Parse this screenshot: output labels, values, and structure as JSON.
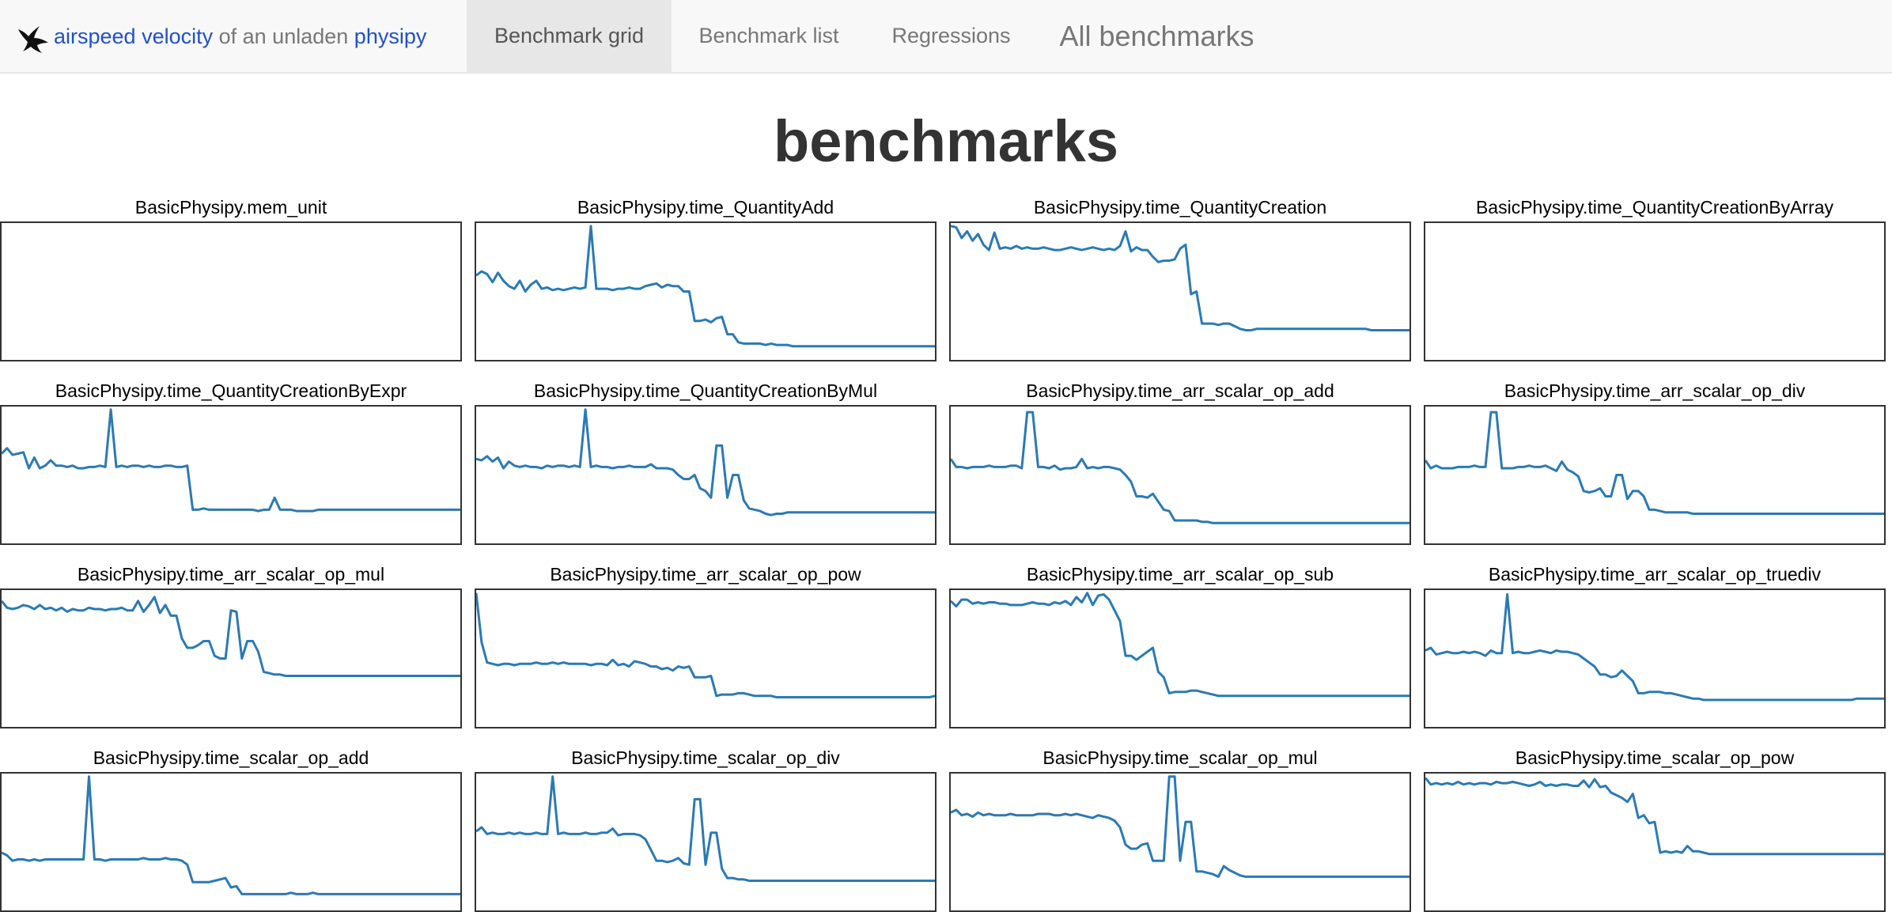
{
  "navbar": {
    "brand": {
      "link_text": "airspeed velocity",
      "middle_text": "of an unladen",
      "project_link": "physipy",
      "logo_icon": "swallow-bird-icon"
    },
    "items": [
      {
        "label": "Benchmark grid",
        "active": true
      },
      {
        "label": "Benchmark list",
        "active": false
      },
      {
        "label": "Regressions",
        "active": false
      },
      {
        "label": "All benchmarks",
        "active": false
      }
    ]
  },
  "page": {
    "title": "benchmarks"
  },
  "colors": {
    "line": "#2a7ab5",
    "link": "#1f51c7",
    "frame": "#333333"
  },
  "chart_data": [
    {
      "type": "line",
      "title": "BasicPhysipy.mem_unit",
      "y": []
    },
    {
      "type": "line",
      "title": "BasicPhysipy.time_QuantityAdd",
      "y": [
        0.62,
        0.65,
        0.63,
        0.57,
        0.64,
        0.58,
        0.54,
        0.52,
        0.58,
        0.5,
        0.55,
        0.58,
        0.52,
        0.53,
        0.51,
        0.52,
        0.51,
        0.52,
        0.53,
        0.52,
        0.53,
        0.99,
        0.52,
        0.52,
        0.52,
        0.51,
        0.52,
        0.52,
        0.53,
        0.52,
        0.52,
        0.54,
        0.55,
        0.56,
        0.53,
        0.55,
        0.54,
        0.54,
        0.5,
        0.5,
        0.28,
        0.28,
        0.29,
        0.27,
        0.3,
        0.31,
        0.18,
        0.18,
        0.12,
        0.11,
        0.11,
        0.11,
        0.11,
        0.1,
        0.11,
        0.1,
        0.1,
        0.1,
        0.09,
        0.09,
        0.09,
        0.09,
        0.09,
        0.09,
        0.09,
        0.09,
        0.09,
        0.09,
        0.09,
        0.09,
        0.09,
        0.09,
        0.09,
        0.09,
        0.09,
        0.09,
        0.09,
        0.09,
        0.09,
        0.09,
        0.09,
        0.09,
        0.09,
        0.09,
        0.09
      ]
    },
    {
      "type": "line",
      "title": "BasicPhysipy.time_QuantityCreation",
      "y": [
        0.99,
        0.98,
        0.9,
        0.95,
        0.88,
        0.93,
        0.85,
        0.81,
        0.94,
        0.82,
        0.83,
        0.82,
        0.84,
        0.82,
        0.83,
        0.82,
        0.82,
        0.83,
        0.82,
        0.81,
        0.81,
        0.82,
        0.83,
        0.82,
        0.81,
        0.82,
        0.83,
        0.82,
        0.81,
        0.82,
        0.81,
        0.84,
        0.95,
        0.8,
        0.83,
        0.81,
        0.81,
        0.76,
        0.72,
        0.73,
        0.73,
        0.74,
        0.82,
        0.85,
        0.48,
        0.5,
        0.26,
        0.26,
        0.26,
        0.25,
        0.26,
        0.26,
        0.24,
        0.22,
        0.21,
        0.21,
        0.22,
        0.22,
        0.22,
        0.22,
        0.22,
        0.22,
        0.22,
        0.22,
        0.22,
        0.22,
        0.22,
        0.22,
        0.22,
        0.22,
        0.22,
        0.22,
        0.22,
        0.22,
        0.22,
        0.22,
        0.22,
        0.21,
        0.21,
        0.21,
        0.21,
        0.21,
        0.21,
        0.21,
        0.21
      ]
    },
    {
      "type": "line",
      "title": "BasicPhysipy.time_QuantityCreationByArray",
      "y": []
    },
    {
      "type": "line",
      "title": "BasicPhysipy.time_QuantityCreationByExpr",
      "y": [
        0.66,
        0.7,
        0.65,
        0.66,
        0.67,
        0.55,
        0.63,
        0.55,
        0.57,
        0.61,
        0.57,
        0.57,
        0.56,
        0.57,
        0.55,
        0.55,
        0.56,
        0.56,
        0.57,
        0.56,
        0.99,
        0.56,
        0.57,
        0.56,
        0.57,
        0.57,
        0.56,
        0.57,
        0.56,
        0.56,
        0.57,
        0.57,
        0.56,
        0.56,
        0.57,
        0.24,
        0.24,
        0.25,
        0.24,
        0.24,
        0.24,
        0.24,
        0.24,
        0.24,
        0.24,
        0.24,
        0.24,
        0.23,
        0.24,
        0.24,
        0.33,
        0.24,
        0.24,
        0.24,
        0.23,
        0.23,
        0.23,
        0.23,
        0.24,
        0.24,
        0.24,
        0.24,
        0.24,
        0.24,
        0.24,
        0.24,
        0.24,
        0.24,
        0.24,
        0.24,
        0.24,
        0.24,
        0.24,
        0.24,
        0.24,
        0.24,
        0.24,
        0.24,
        0.24,
        0.24,
        0.24,
        0.24,
        0.24,
        0.24,
        0.24
      ]
    },
    {
      "type": "line",
      "title": "BasicPhysipy.time_QuantityCreationByMul",
      "y": [
        0.62,
        0.61,
        0.64,
        0.6,
        0.63,
        0.55,
        0.6,
        0.57,
        0.56,
        0.57,
        0.56,
        0.56,
        0.55,
        0.57,
        0.56,
        0.57,
        0.57,
        0.56,
        0.57,
        0.56,
        0.99,
        0.56,
        0.57,
        0.56,
        0.56,
        0.55,
        0.56,
        0.56,
        0.57,
        0.56,
        0.56,
        0.56,
        0.58,
        0.55,
        0.55,
        0.55,
        0.54,
        0.5,
        0.47,
        0.47,
        0.5,
        0.4,
        0.38,
        0.33,
        0.72,
        0.72,
        0.33,
        0.5,
        0.5,
        0.31,
        0.25,
        0.24,
        0.23,
        0.21,
        0.2,
        0.21,
        0.21,
        0.22,
        0.22,
        0.22,
        0.22,
        0.22,
        0.22,
        0.22,
        0.22,
        0.22,
        0.22,
        0.22,
        0.22,
        0.22,
        0.22,
        0.22,
        0.22,
        0.22,
        0.22,
        0.22,
        0.22,
        0.22,
        0.22,
        0.22,
        0.22,
        0.22,
        0.22,
        0.22,
        0.22
      ]
    },
    {
      "type": "line",
      "title": "BasicPhysipy.time_arr_scalar_op_add",
      "y": [
        0.62,
        0.56,
        0.56,
        0.55,
        0.56,
        0.56,
        0.56,
        0.57,
        0.56,
        0.56,
        0.56,
        0.57,
        0.57,
        0.55,
        0.97,
        0.97,
        0.56,
        0.56,
        0.55,
        0.57,
        0.54,
        0.55,
        0.55,
        0.56,
        0.62,
        0.55,
        0.56,
        0.55,
        0.56,
        0.56,
        0.55,
        0.54,
        0.5,
        0.45,
        0.34,
        0.34,
        0.33,
        0.36,
        0.3,
        0.24,
        0.23,
        0.16,
        0.16,
        0.16,
        0.16,
        0.16,
        0.15,
        0.15,
        0.14,
        0.14,
        0.14,
        0.14,
        0.14,
        0.14,
        0.14,
        0.14,
        0.14,
        0.14,
        0.14,
        0.14,
        0.14,
        0.14,
        0.14,
        0.14,
        0.14,
        0.14,
        0.14,
        0.14,
        0.14,
        0.14,
        0.14,
        0.14,
        0.14,
        0.14,
        0.14,
        0.14,
        0.14,
        0.14,
        0.14,
        0.14,
        0.14,
        0.14,
        0.14,
        0.14,
        0.14
      ]
    },
    {
      "type": "line",
      "title": "BasicPhysipy.time_arr_scalar_op_div",
      "y": [
        0.61,
        0.55,
        0.57,
        0.55,
        0.55,
        0.55,
        0.56,
        0.56,
        0.56,
        0.57,
        0.56,
        0.56,
        0.97,
        0.97,
        0.55,
        0.55,
        0.55,
        0.56,
        0.56,
        0.57,
        0.56,
        0.56,
        0.57,
        0.55,
        0.53,
        0.6,
        0.54,
        0.52,
        0.49,
        0.38,
        0.37,
        0.38,
        0.4,
        0.34,
        0.34,
        0.5,
        0.5,
        0.32,
        0.38,
        0.38,
        0.34,
        0.24,
        0.24,
        0.23,
        0.22,
        0.22,
        0.22,
        0.22,
        0.22,
        0.21,
        0.21,
        0.21,
        0.21,
        0.21,
        0.21,
        0.21,
        0.21,
        0.21,
        0.21,
        0.21,
        0.21,
        0.21,
        0.21,
        0.21,
        0.21,
        0.21,
        0.21,
        0.21,
        0.21,
        0.21,
        0.21,
        0.21,
        0.21,
        0.21,
        0.21,
        0.21,
        0.21,
        0.21,
        0.21,
        0.21,
        0.21,
        0.21,
        0.21,
        0.21,
        0.21
      ]
    },
    {
      "type": "line",
      "title": "BasicPhysipy.time_arr_scalar_op_mul",
      "y": [
        0.93,
        0.88,
        0.87,
        0.88,
        0.9,
        0.89,
        0.87,
        0.9,
        0.87,
        0.88,
        0.86,
        0.88,
        0.85,
        0.87,
        0.86,
        0.86,
        0.88,
        0.87,
        0.87,
        0.86,
        0.87,
        0.87,
        0.88,
        0.86,
        0.86,
        0.93,
        0.85,
        0.9,
        0.96,
        0.84,
        0.9,
        0.82,
        0.82,
        0.65,
        0.58,
        0.58,
        0.6,
        0.63,
        0.63,
        0.52,
        0.5,
        0.5,
        0.86,
        0.85,
        0.5,
        0.63,
        0.63,
        0.55,
        0.4,
        0.39,
        0.38,
        0.38,
        0.37,
        0.37,
        0.37,
        0.37,
        0.37,
        0.37,
        0.37,
        0.37,
        0.37,
        0.37,
        0.37,
        0.37,
        0.37,
        0.37,
        0.37,
        0.37,
        0.37,
        0.37,
        0.37,
        0.37,
        0.37,
        0.37,
        0.37,
        0.37,
        0.37,
        0.37,
        0.37,
        0.37,
        0.37,
        0.37,
        0.37,
        0.37,
        0.37
      ]
    },
    {
      "type": "line",
      "title": "BasicPhysipy.time_arr_scalar_op_pow",
      "y": [
        0.99,
        0.62,
        0.47,
        0.46,
        0.45,
        0.46,
        0.46,
        0.45,
        0.46,
        0.46,
        0.46,
        0.47,
        0.46,
        0.46,
        0.47,
        0.46,
        0.47,
        0.46,
        0.46,
        0.46,
        0.46,
        0.45,
        0.46,
        0.46,
        0.45,
        0.49,
        0.45,
        0.46,
        0.44,
        0.48,
        0.47,
        0.46,
        0.44,
        0.44,
        0.42,
        0.43,
        0.41,
        0.44,
        0.43,
        0.44,
        0.36,
        0.36,
        0.36,
        0.37,
        0.22,
        0.23,
        0.23,
        0.23,
        0.24,
        0.24,
        0.23,
        0.22,
        0.22,
        0.22,
        0.22,
        0.21,
        0.21,
        0.21,
        0.21,
        0.21,
        0.21,
        0.21,
        0.21,
        0.21,
        0.21,
        0.21,
        0.21,
        0.21,
        0.21,
        0.21,
        0.21,
        0.21,
        0.21,
        0.21,
        0.21,
        0.21,
        0.21,
        0.21,
        0.21,
        0.21,
        0.21,
        0.21,
        0.21,
        0.21,
        0.22
      ]
    },
    {
      "type": "line",
      "title": "BasicPhysipy.time_arr_scalar_op_sub",
      "y": [
        0.93,
        0.89,
        0.94,
        0.94,
        0.91,
        0.92,
        0.91,
        0.92,
        0.92,
        0.91,
        0.91,
        0.9,
        0.9,
        0.9,
        0.91,
        0.92,
        0.91,
        0.91,
        0.9,
        0.92,
        0.91,
        0.93,
        0.9,
        0.96,
        0.92,
        0.99,
        0.9,
        0.97,
        0.98,
        0.94,
        0.86,
        0.78,
        0.52,
        0.52,
        0.49,
        0.52,
        0.55,
        0.58,
        0.4,
        0.36,
        0.24,
        0.25,
        0.25,
        0.25,
        0.26,
        0.26,
        0.25,
        0.24,
        0.23,
        0.22,
        0.22,
        0.22,
        0.22,
        0.22,
        0.22,
        0.22,
        0.22,
        0.22,
        0.22,
        0.22,
        0.22,
        0.22,
        0.22,
        0.22,
        0.22,
        0.22,
        0.22,
        0.22,
        0.22,
        0.22,
        0.22,
        0.22,
        0.22,
        0.22,
        0.22,
        0.22,
        0.22,
        0.22,
        0.22,
        0.22,
        0.22,
        0.22,
        0.22,
        0.22,
        0.22
      ]
    },
    {
      "type": "line",
      "title": "BasicPhysipy.time_arr_scalar_op_truediv",
      "y": [
        0.56,
        0.58,
        0.53,
        0.54,
        0.55,
        0.54,
        0.54,
        0.55,
        0.54,
        0.55,
        0.54,
        0.52,
        0.56,
        0.54,
        0.54,
        0.98,
        0.54,
        0.55,
        0.54,
        0.54,
        0.55,
        0.56,
        0.55,
        0.54,
        0.56,
        0.55,
        0.55,
        0.54,
        0.53,
        0.5,
        0.47,
        0.44,
        0.38,
        0.38,
        0.36,
        0.37,
        0.41,
        0.37,
        0.33,
        0.24,
        0.24,
        0.25,
        0.25,
        0.25,
        0.24,
        0.24,
        0.23,
        0.22,
        0.21,
        0.2,
        0.2,
        0.19,
        0.19,
        0.19,
        0.19,
        0.19,
        0.19,
        0.19,
        0.19,
        0.19,
        0.19,
        0.19,
        0.19,
        0.19,
        0.19,
        0.19,
        0.19,
        0.19,
        0.19,
        0.19,
        0.19,
        0.19,
        0.19,
        0.19,
        0.19,
        0.19,
        0.19,
        0.19,
        0.19,
        0.2,
        0.2,
        0.2,
        0.2,
        0.2,
        0.2
      ]
    },
    {
      "type": "line",
      "title": "BasicPhysipy.time_scalar_op_add",
      "y": [
        0.42,
        0.4,
        0.36,
        0.37,
        0.37,
        0.36,
        0.37,
        0.36,
        0.37,
        0.37,
        0.37,
        0.37,
        0.37,
        0.37,
        0.37,
        0.37,
        0.99,
        0.37,
        0.37,
        0.36,
        0.37,
        0.37,
        0.37,
        0.37,
        0.37,
        0.37,
        0.38,
        0.37,
        0.37,
        0.37,
        0.38,
        0.37,
        0.37,
        0.36,
        0.33,
        0.2,
        0.2,
        0.2,
        0.2,
        0.21,
        0.22,
        0.23,
        0.16,
        0.17,
        0.11,
        0.11,
        0.11,
        0.11,
        0.11,
        0.11,
        0.11,
        0.11,
        0.11,
        0.12,
        0.11,
        0.11,
        0.11,
        0.12,
        0.11,
        0.11,
        0.11,
        0.11,
        0.11,
        0.11,
        0.11,
        0.11,
        0.11,
        0.11,
        0.11,
        0.11,
        0.11,
        0.11,
        0.11,
        0.11,
        0.11,
        0.11,
        0.11,
        0.11,
        0.11,
        0.11,
        0.11,
        0.11,
        0.11,
        0.11,
        0.11
      ]
    },
    {
      "type": "line",
      "title": "BasicPhysipy.time_scalar_op_div",
      "y": [
        0.58,
        0.61,
        0.56,
        0.57,
        0.56,
        0.56,
        0.57,
        0.56,
        0.57,
        0.56,
        0.56,
        0.57,
        0.56,
        0.56,
        0.99,
        0.56,
        0.57,
        0.56,
        0.56,
        0.56,
        0.57,
        0.56,
        0.56,
        0.57,
        0.57,
        0.6,
        0.55,
        0.56,
        0.56,
        0.56,
        0.55,
        0.52,
        0.44,
        0.36,
        0.36,
        0.35,
        0.36,
        0.38,
        0.34,
        0.33,
        0.82,
        0.82,
        0.33,
        0.57,
        0.57,
        0.3,
        0.23,
        0.23,
        0.22,
        0.22,
        0.21,
        0.21,
        0.21,
        0.21,
        0.21,
        0.21,
        0.21,
        0.21,
        0.21,
        0.21,
        0.21,
        0.21,
        0.21,
        0.21,
        0.21,
        0.21,
        0.21,
        0.21,
        0.21,
        0.21,
        0.21,
        0.21,
        0.21,
        0.21,
        0.21,
        0.21,
        0.21,
        0.21,
        0.21,
        0.21,
        0.21,
        0.21,
        0.21,
        0.21,
        0.21
      ]
    },
    {
      "type": "line",
      "title": "BasicPhysipy.time_scalar_op_mul",
      "y": [
        0.72,
        0.74,
        0.7,
        0.71,
        0.69,
        0.72,
        0.7,
        0.71,
        0.7,
        0.7,
        0.7,
        0.71,
        0.7,
        0.7,
        0.7,
        0.7,
        0.71,
        0.71,
        0.71,
        0.7,
        0.7,
        0.71,
        0.7,
        0.71,
        0.7,
        0.69,
        0.68,
        0.7,
        0.69,
        0.68,
        0.66,
        0.61,
        0.48,
        0.45,
        0.45,
        0.48,
        0.49,
        0.36,
        0.36,
        0.36,
        0.99,
        0.99,
        0.36,
        0.65,
        0.65,
        0.28,
        0.28,
        0.27,
        0.26,
        0.24,
        0.32,
        0.29,
        0.27,
        0.25,
        0.24,
        0.24,
        0.24,
        0.24,
        0.24,
        0.24,
        0.24,
        0.24,
        0.24,
        0.24,
        0.24,
        0.24,
        0.24,
        0.24,
        0.24,
        0.24,
        0.24,
        0.24,
        0.24,
        0.24,
        0.24,
        0.24,
        0.24,
        0.24,
        0.24,
        0.24,
        0.24,
        0.24,
        0.24,
        0.24,
        0.24
      ]
    },
    {
      "type": "line",
      "title": "BasicPhysipy.time_scalar_op_pow",
      "y": [
        0.98,
        0.93,
        0.94,
        0.93,
        0.94,
        0.93,
        0.95,
        0.93,
        0.94,
        0.93,
        0.94,
        0.94,
        0.93,
        0.95,
        0.94,
        0.94,
        0.95,
        0.94,
        0.93,
        0.92,
        0.93,
        0.95,
        0.92,
        0.93,
        0.92,
        0.93,
        0.93,
        0.92,
        0.92,
        0.96,
        0.91,
        0.97,
        0.91,
        0.92,
        0.87,
        0.85,
        0.83,
        0.8,
        0.86,
        0.68,
        0.7,
        0.64,
        0.65,
        0.42,
        0.43,
        0.42,
        0.43,
        0.42,
        0.47,
        0.43,
        0.43,
        0.42,
        0.41,
        0.41,
        0.41,
        0.41,
        0.41,
        0.41,
        0.41,
        0.41,
        0.41,
        0.41,
        0.41,
        0.41,
        0.41,
        0.41,
        0.41,
        0.41,
        0.41,
        0.41,
        0.41,
        0.41,
        0.41,
        0.41,
        0.41,
        0.41,
        0.41,
        0.41,
        0.41,
        0.41,
        0.41,
        0.41,
        0.41,
        0.41,
        0.41
      ]
    }
  ]
}
